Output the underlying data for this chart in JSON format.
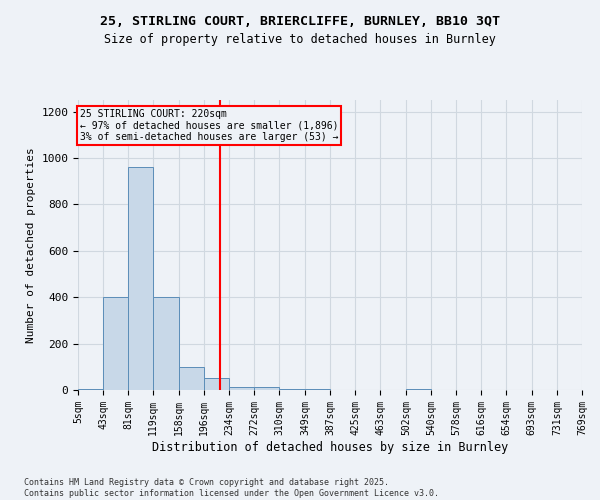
{
  "title_line1": "25, STIRLING COURT, BRIERCLIFFE, BURNLEY, BB10 3QT",
  "title_line2": "Size of property relative to detached houses in Burnley",
  "xlabel": "Distribution of detached houses by size in Burnley",
  "ylabel": "Number of detached properties",
  "bin_edges": [
    5,
    43,
    81,
    119,
    158,
    196,
    234,
    272,
    310,
    349,
    387,
    425,
    463,
    502,
    540,
    578,
    616,
    654,
    693,
    731,
    769
  ],
  "bin_labels": [
    "5sqm",
    "43sqm",
    "81sqm",
    "119sqm",
    "158sqm",
    "196sqm",
    "234sqm",
    "272sqm",
    "310sqm",
    "349sqm",
    "387sqm",
    "425sqm",
    "463sqm",
    "502sqm",
    "540sqm",
    "578sqm",
    "616sqm",
    "654sqm",
    "693sqm",
    "731sqm",
    "769sqm"
  ],
  "counts": [
    5,
    400,
    960,
    400,
    100,
    50,
    15,
    15,
    5,
    3,
    2,
    0,
    0,
    3,
    0,
    0,
    0,
    0,
    0,
    0
  ],
  "bar_color": "#c8d8e8",
  "bar_edge_color": "#5b8db8",
  "grid_color": "#d0d8e0",
  "background_color": "#eef2f7",
  "vline_x": 220,
  "vline_color": "red",
  "annotation_text": "25 STIRLING COURT: 220sqm\n← 97% of detached houses are smaller (1,896)\n3% of semi-detached houses are larger (53) →",
  "annotation_box_color": "red",
  "ylim": [
    0,
    1250
  ],
  "yticks": [
    0,
    200,
    400,
    600,
    800,
    1000,
    1200
  ],
  "footer_line1": "Contains HM Land Registry data © Crown copyright and database right 2025.",
  "footer_line2": "Contains public sector information licensed under the Open Government Licence v3.0."
}
